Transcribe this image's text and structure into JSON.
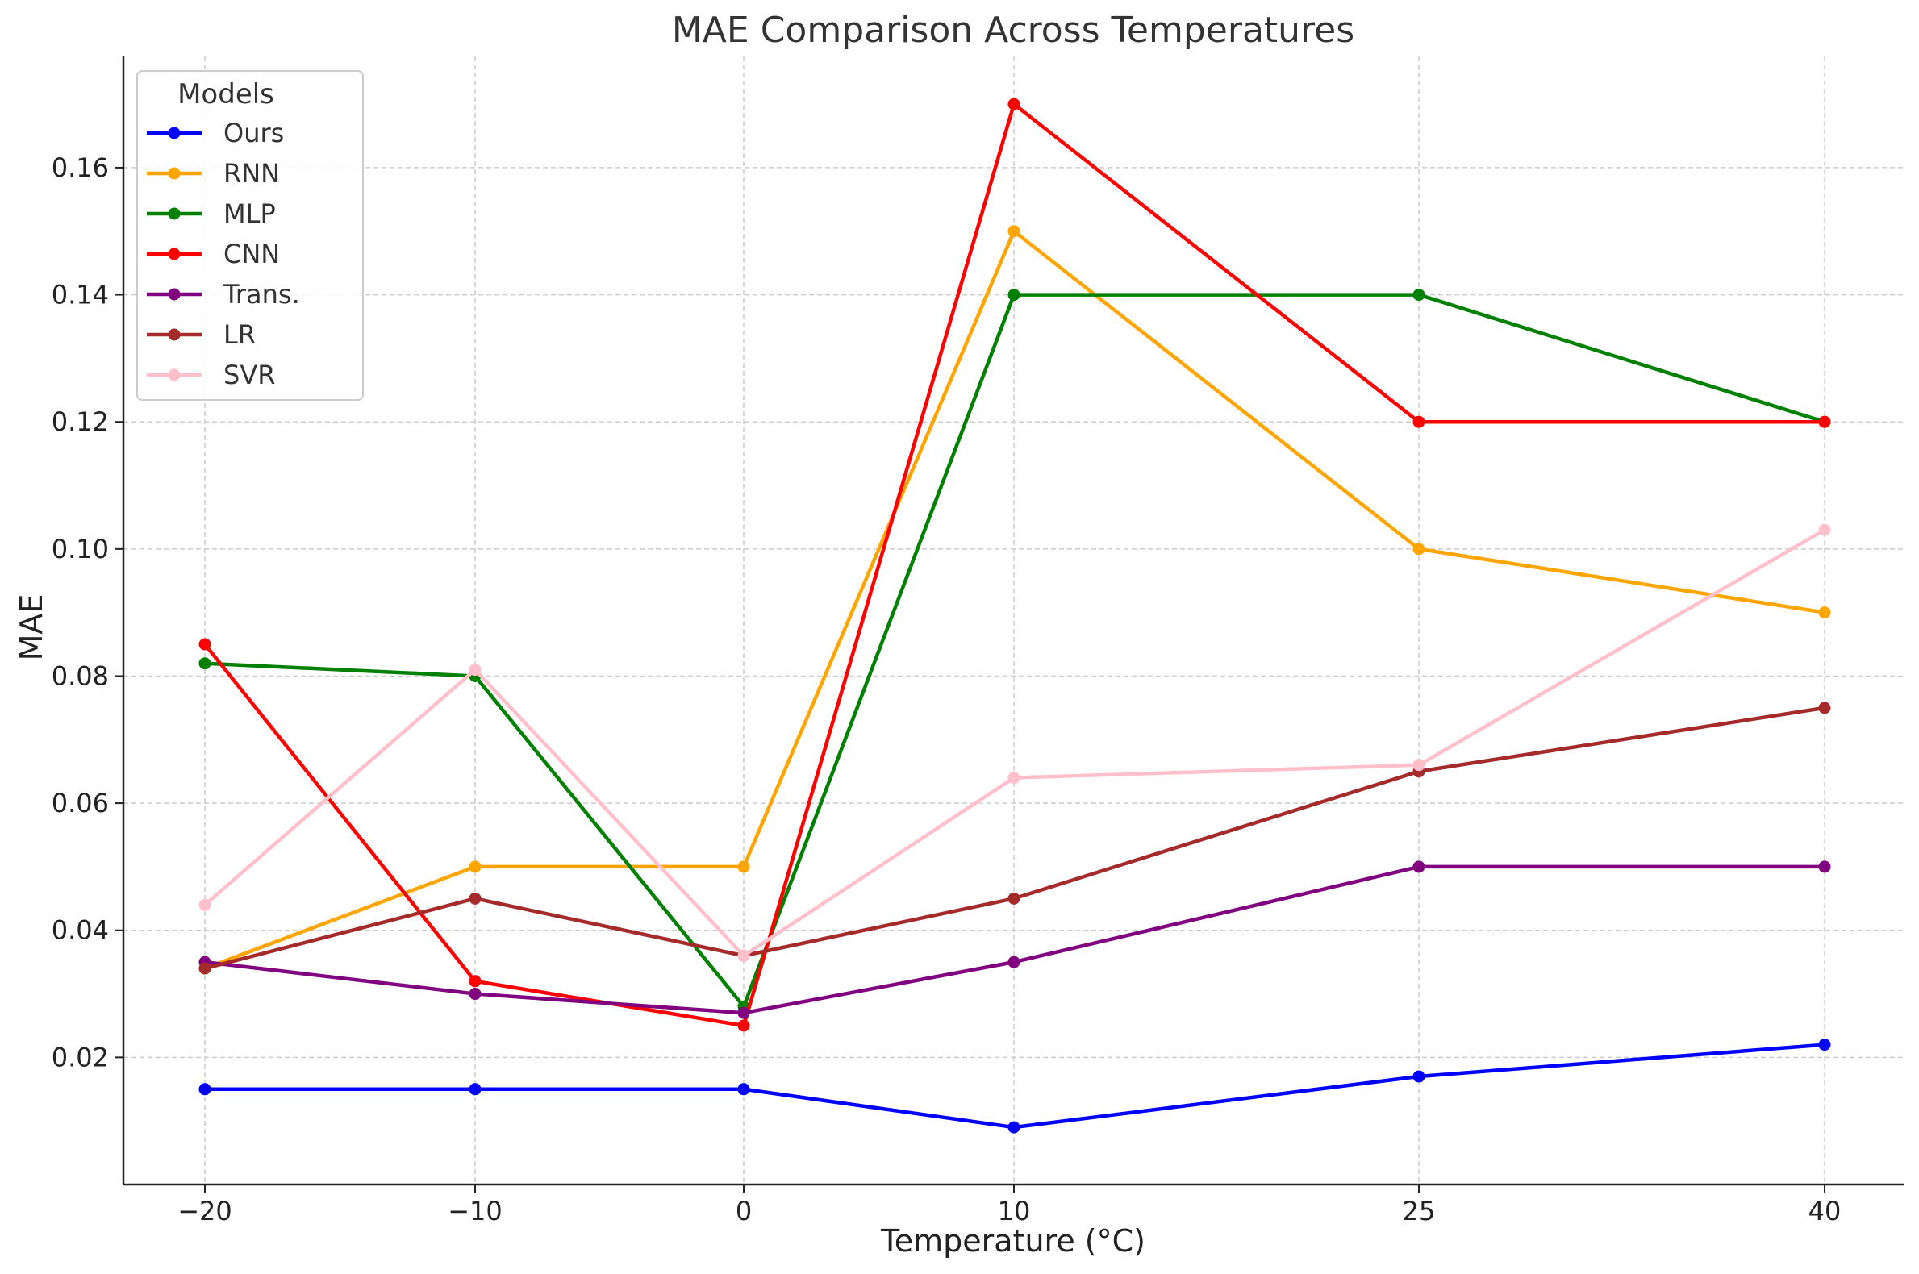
{
  "chart_data": {
    "type": "line",
    "title": "MAE Comparison Across Temperatures",
    "xlabel": "Temperature (°C)",
    "ylabel": "MAE",
    "categories": [
      "−20",
      "−10",
      "0",
      "10",
      "25",
      "40"
    ],
    "x": [
      -20,
      -10,
      0,
      10,
      25,
      40
    ],
    "yticks": [
      "0.02",
      "0.04",
      "0.06",
      "0.08",
      "0.10",
      "0.12",
      "0.14",
      "0.16"
    ],
    "ylim": [
      0.0,
      0.1775
    ],
    "grid": true,
    "legend": {
      "title": "Models",
      "placement": "top-left"
    },
    "series": [
      {
        "name": "Ours",
        "color": "#0000ff",
        "values": [
          0.015,
          0.015,
          0.015,
          0.009,
          0.017,
          0.022
        ]
      },
      {
        "name": "RNN",
        "color": "#ffa500",
        "values": [
          0.034,
          0.05,
          0.05,
          0.15,
          0.1,
          0.09
        ]
      },
      {
        "name": "MLP",
        "color": "#008000",
        "values": [
          0.082,
          0.08,
          0.028,
          0.14,
          0.14,
          0.12
        ]
      },
      {
        "name": "CNN",
        "color": "#ff0000",
        "values": [
          0.085,
          0.032,
          0.025,
          0.17,
          0.12,
          0.12
        ]
      },
      {
        "name": "Trans.",
        "color": "#800080",
        "values": [
          0.035,
          0.03,
          0.027,
          0.035,
          0.05,
          0.05
        ]
      },
      {
        "name": "LR",
        "color": "#a52a2a",
        "values": [
          0.034,
          0.045,
          0.036,
          0.045,
          0.065,
          0.075
        ]
      },
      {
        "name": "SVR",
        "color": "#ffc0cb",
        "values": [
          0.044,
          0.081,
          0.036,
          0.064,
          0.066,
          0.103
        ]
      }
    ]
  }
}
